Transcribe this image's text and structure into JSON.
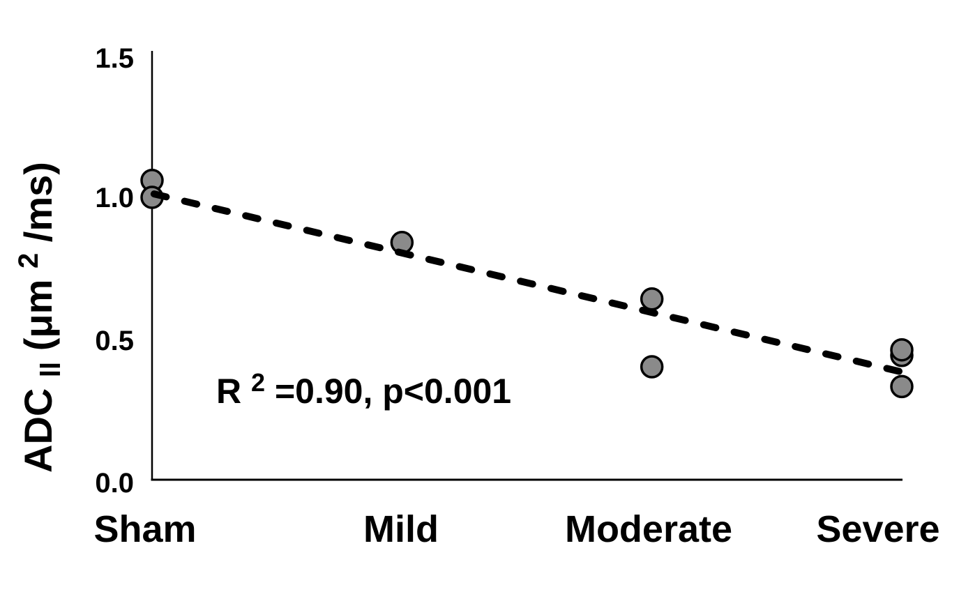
{
  "chart_data": {
    "type": "scatter",
    "title": "",
    "categories": [
      "Sham",
      "Mild",
      "Moderate",
      "Severe"
    ],
    "y_axis_title": {
      "base": "ADC",
      "subscript": "ll",
      "unit_prefix": " (μm",
      "unit_superscript": "2",
      "unit_suffix": "/ms)"
    },
    "xlabel": "",
    "ylim": [
      0.0,
      1.5
    ],
    "ytick_values": [
      0.0,
      0.5,
      1.0,
      1.5
    ],
    "ytick_labels": [
      "0.0",
      "0.5",
      "1.0",
      "1.5"
    ],
    "grid": false,
    "legend": false,
    "series": [
      {
        "name": "ADC parallel",
        "marker": "circle",
        "points": [
          {
            "category": "Sham",
            "value": 1.06
          },
          {
            "category": "Sham",
            "value": 1.0
          },
          {
            "category": "Mild",
            "value": 0.84
          },
          {
            "category": "Moderate",
            "value": 0.64
          },
          {
            "category": "Moderate",
            "value": 0.4
          },
          {
            "category": "Severe",
            "value": 0.44
          },
          {
            "category": "Severe",
            "value": 0.46
          },
          {
            "category": "Severe",
            "value": 0.33
          }
        ]
      }
    ],
    "trendline": {
      "style": "dashed",
      "start_index": 0.008,
      "start_value": 1.012,
      "end_index": 3.036,
      "end_value": 0.374,
      "r_squared": "0.90",
      "p_value": "<0.001"
    },
    "annotation": {
      "base": "R",
      "superscript": "2",
      "rest": "=0.90, p<0.001"
    },
    "colors": {
      "point_fill": "#8a8a8a",
      "point_stroke": "#000000",
      "trendline": "#000000",
      "axis": "#000000",
      "text": "#000000"
    }
  }
}
